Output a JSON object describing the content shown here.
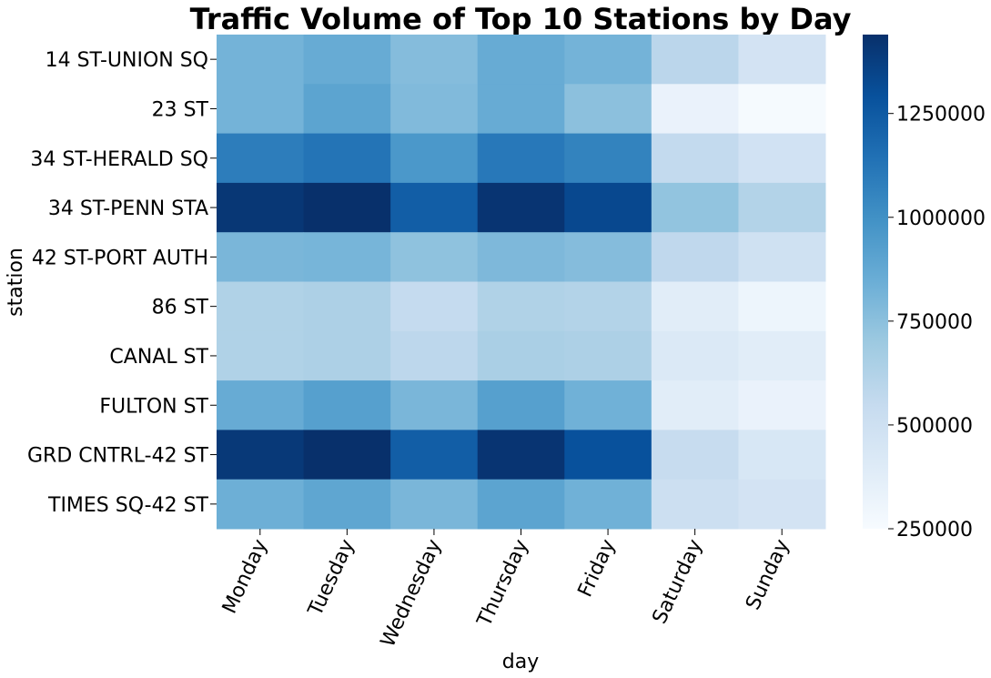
{
  "chart_data": {
    "type": "heatmap",
    "title": "Traffic Volume of Top 10 Stations by Day",
    "xlabel": "day",
    "ylabel": "station",
    "x_categories": [
      "Monday",
      "Tuesday",
      "Wednesday",
      "Thursday",
      "Friday",
      "Saturday",
      "Sunday"
    ],
    "y_categories": [
      "14 ST-UNION SQ",
      "23 ST",
      "34 ST-HERALD SQ",
      "34 ST-PENN STA",
      "42 ST-PORT AUTH",
      "86 ST",
      "CANAL ST",
      "FULTON ST",
      "GRD CNTRL-42 ST",
      "TIMES SQ-42 ST"
    ],
    "values": [
      [
        820000,
        860000,
        770000,
        860000,
        820000,
        590000,
        470000
      ],
      [
        820000,
        900000,
        780000,
        860000,
        750000,
        330000,
        260000
      ],
      [
        1090000,
        1130000,
        960000,
        1110000,
        1060000,
        560000,
        480000
      ],
      [
        1410000,
        1440000,
        1230000,
        1420000,
        1330000,
        730000,
        620000
      ],
      [
        800000,
        810000,
        740000,
        790000,
        770000,
        570000,
        490000
      ],
      [
        630000,
        640000,
        550000,
        630000,
        620000,
        380000,
        310000
      ],
      [
        630000,
        640000,
        580000,
        650000,
        640000,
        420000,
        380000
      ],
      [
        860000,
        920000,
        800000,
        920000,
        830000,
        380000,
        330000
      ],
      [
        1400000,
        1440000,
        1230000,
        1420000,
        1290000,
        540000,
        440000
      ],
      [
        840000,
        890000,
        800000,
        900000,
        830000,
        510000,
        470000
      ]
    ],
    "colormap": "Blues",
    "color_range": [
      250000,
      1440000
    ],
    "colorbar_ticks": [
      250000,
      500000,
      750000,
      1000000,
      1250000
    ],
    "colorbar_tick_labels": [
      "250000",
      "500000",
      "750000",
      "1000000",
      "1250000"
    ],
    "legend": "colorbar-right",
    "grid": false
  }
}
